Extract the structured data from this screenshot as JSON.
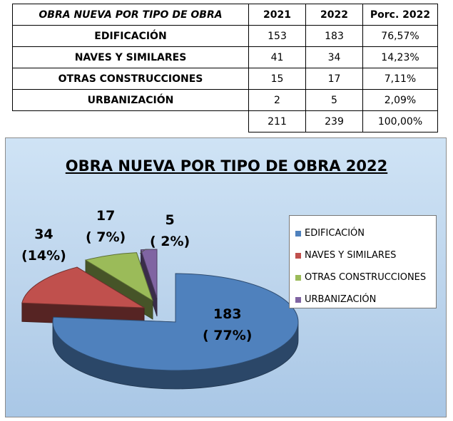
{
  "table": {
    "header": {
      "title": "OBRA NUEVA POR TIPO DE OBRA",
      "col_2021": "2021",
      "col_2022": "2022",
      "col_pct": "Porc. 2022"
    },
    "rows": [
      {
        "label": "EDIFICACIÓN",
        "y2021": "153",
        "y2022": "183",
        "pct": "76,57%"
      },
      {
        "label": "NAVES Y SIMILARES",
        "y2021": "41",
        "y2022": "34",
        "pct": "14,23%"
      },
      {
        "label": "OTRAS CONSTRUCCIONES",
        "y2021": "15",
        "y2022": "17",
        "pct": "7,11%"
      },
      {
        "label": "URBANIZACIÓN",
        "y2021": "2",
        "y2022": "5",
        "pct": "2,09%"
      }
    ],
    "totals": {
      "y2021": "211",
      "y2022": "239",
      "pct": "100,00%"
    }
  },
  "chart_data": {
    "type": "pie",
    "title": "OBRA NUEVA POR TIPO DE OBRA 2022",
    "legend_position": "right",
    "exploded": true,
    "style": "3d",
    "categories": [
      "EDIFICACIÓN",
      "NAVES Y SIMILARES",
      "OTRAS CONSTRUCCIONES",
      "URBANIZACIÓN"
    ],
    "values": [
      183,
      34,
      17,
      5
    ],
    "percent_labels": [
      "( 77%)",
      "(14%)",
      "( 7%)",
      "( 2%)"
    ],
    "value_labels": [
      "183",
      "34",
      "17",
      "5"
    ],
    "colors": [
      "#4f81bd",
      "#c0504d",
      "#9bbb59",
      "#8064a2"
    ]
  }
}
